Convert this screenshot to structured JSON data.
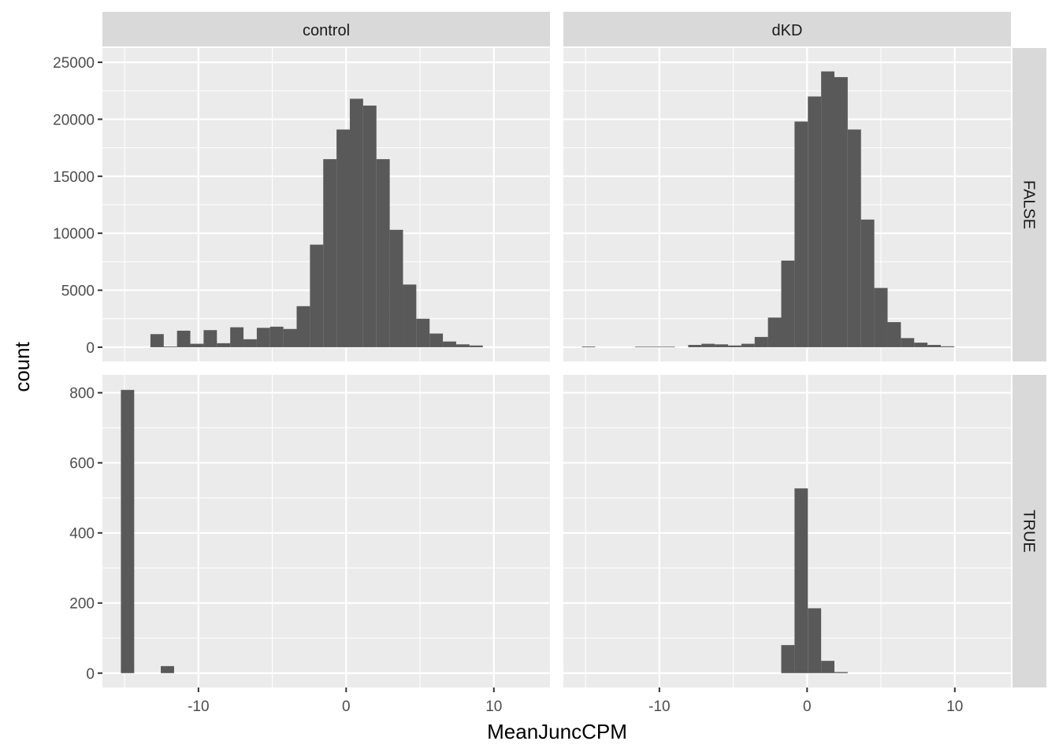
{
  "chart_data": {
    "type": "bar",
    "xlabel": "MeanJuncCPM",
    "ylabel": "count",
    "columns": [
      "control",
      "dKD"
    ],
    "rows": [
      "FALSE",
      "TRUE"
    ],
    "bin_width": 1.8,
    "xlim": [
      -16.5,
      13.8
    ],
    "x_ticks": [
      -10,
      0,
      10
    ],
    "y_ticks_top": [
      0,
      5000,
      10000,
      15000,
      20000,
      25000
    ],
    "y_ticks_bottom": [
      0,
      200,
      400,
      600,
      800
    ],
    "ylim_top": [
      -1250,
      26250
    ],
    "ylim_bottom": [
      -41,
      851
    ],
    "grid": true,
    "panels": [
      {
        "column": "control",
        "row": "FALSE",
        "bins": [
          {
            "x": -12.8,
            "count": 1150
          },
          {
            "x": -11.9,
            "count": 60
          },
          {
            "x": -11.0,
            "count": 1450
          },
          {
            "x": -10.1,
            "count": 300
          },
          {
            "x": -9.2,
            "count": 1500
          },
          {
            "x": -8.3,
            "count": 350
          },
          {
            "x": -7.4,
            "count": 1750
          },
          {
            "x": -6.5,
            "count": 700
          },
          {
            "x": -5.6,
            "count": 1700
          },
          {
            "x": -4.7,
            "count": 1800
          },
          {
            "x": -3.8,
            "count": 1600
          },
          {
            "x": -2.9,
            "count": 3600
          },
          {
            "x": -2.0,
            "count": 9000
          },
          {
            "x": -1.1,
            "count": 16500
          },
          {
            "x": -0.2,
            "count": 19100
          },
          {
            "x": 0.7,
            "count": 21800
          },
          {
            "x": 1.6,
            "count": 21200
          },
          {
            "x": 2.5,
            "count": 16500
          },
          {
            "x": 3.4,
            "count": 10300
          },
          {
            "x": 4.3,
            "count": 5500
          },
          {
            "x": 5.2,
            "count": 2500
          },
          {
            "x": 6.1,
            "count": 1200
          },
          {
            "x": 7.0,
            "count": 500
          },
          {
            "x": 7.9,
            "count": 250
          },
          {
            "x": 8.8,
            "count": 150
          }
        ]
      },
      {
        "column": "dKD",
        "row": "FALSE",
        "bins": [
          {
            "x": -14.8,
            "count": 60
          },
          {
            "x": -11.2,
            "count": 50
          },
          {
            "x": -10.3,
            "count": 50
          },
          {
            "x": -9.4,
            "count": 50
          },
          {
            "x": -7.6,
            "count": 200
          },
          {
            "x": -6.7,
            "count": 300
          },
          {
            "x": -5.8,
            "count": 250
          },
          {
            "x": -4.9,
            "count": 150
          },
          {
            "x": -4.0,
            "count": 300
          },
          {
            "x": -3.1,
            "count": 900
          },
          {
            "x": -2.2,
            "count": 2600
          },
          {
            "x": -1.3,
            "count": 7600
          },
          {
            "x": -0.4,
            "count": 19800
          },
          {
            "x": 0.5,
            "count": 22000
          },
          {
            "x": 1.4,
            "count": 24200
          },
          {
            "x": 2.3,
            "count": 23700
          },
          {
            "x": 3.2,
            "count": 19100
          },
          {
            "x": 4.1,
            "count": 11200
          },
          {
            "x": 5.0,
            "count": 5200
          },
          {
            "x": 5.9,
            "count": 2200
          },
          {
            "x": 6.8,
            "count": 800
          },
          {
            "x": 7.7,
            "count": 400
          },
          {
            "x": 8.6,
            "count": 200
          },
          {
            "x": 9.5,
            "count": 80
          }
        ]
      },
      {
        "column": "control",
        "row": "TRUE",
        "bins": [
          {
            "x": -14.8,
            "count": 808
          },
          {
            "x": -12.1,
            "count": 20
          }
        ]
      },
      {
        "column": "dKD",
        "row": "TRUE",
        "bins": [
          {
            "x": -1.3,
            "count": 80
          },
          {
            "x": -0.4,
            "count": 527
          },
          {
            "x": 0.5,
            "count": 185
          },
          {
            "x": 1.4,
            "count": 35
          },
          {
            "x": 2.3,
            "count": 3
          }
        ]
      }
    ]
  }
}
